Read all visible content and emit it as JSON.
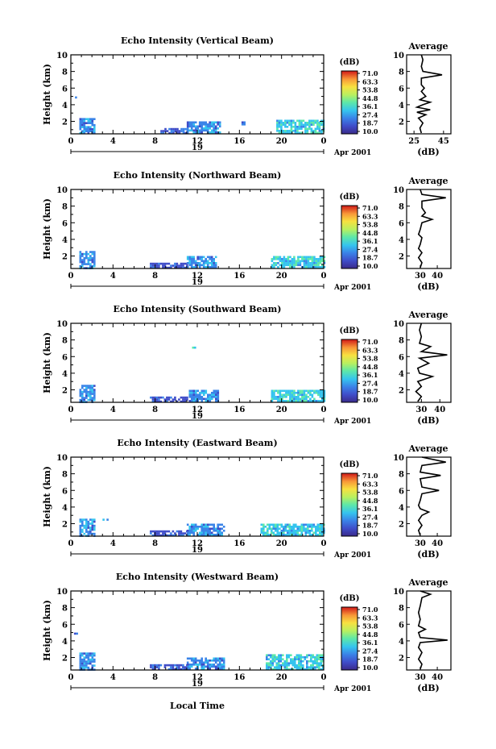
{
  "chart_data": {
    "type": "heatmap",
    "xlabel": "Local Time",
    "day_label": "19",
    "date_label": "Apr 2001",
    "ylabel": "Height (km)",
    "colorbar": {
      "unit": "(dB)",
      "ticks": [
        "71.0",
        "63.3",
        "53.8",
        "44.8",
        "36.1",
        "27.4",
        "18.7",
        "10.0"
      ],
      "colors": [
        "#3a2a8a",
        "#3f4cc8",
        "#3a84e8",
        "#35c4ee",
        "#5ee8a8",
        "#b8f060",
        "#f8e040",
        "#f89838",
        "#e84020",
        "#d01818"
      ]
    },
    "x_ticks": [
      "0",
      "4",
      "8",
      "12",
      "16",
      "20",
      "0"
    ],
    "y_ticks": [
      "10",
      "8",
      "6",
      "4",
      "2"
    ],
    "xlim": [
      0,
      24
    ],
    "ylim": [
      0.5,
      10
    ],
    "avg_title": "Average",
    "avg_xlabel": "(dB)",
    "panels": [
      {
        "title": "Echo Intensity (Vertical Beam)",
        "avg_ticks": [
          "25",
          "45"
        ],
        "avg_xlim": [
          20,
          50
        ],
        "avg_profile": [
          {
            "h": 0.6,
            "v": 30
          },
          {
            "h": 1.2,
            "v": 29
          },
          {
            "h": 1.8,
            "v": 31
          },
          {
            "h": 2.4,
            "v": 28
          },
          {
            "h": 2.8,
            "v": 33
          },
          {
            "h": 3.1,
            "v": 27
          },
          {
            "h": 3.4,
            "v": 36
          },
          {
            "h": 3.7,
            "v": 27
          },
          {
            "h": 4.0,
            "v": 31
          },
          {
            "h": 4.3,
            "v": 36
          },
          {
            "h": 4.6,
            "v": 29
          },
          {
            "h": 5.0,
            "v": 33
          },
          {
            "h": 5.6,
            "v": 30
          },
          {
            "h": 6.0,
            "v": 32
          },
          {
            "h": 6.4,
            "v": 30
          },
          {
            "h": 7.2,
            "v": 30
          },
          {
            "h": 7.6,
            "v": 44
          },
          {
            "h": 8.0,
            "v": 31
          },
          {
            "h": 8.6,
            "v": 30
          },
          {
            "h": 9.4,
            "v": 31
          },
          {
            "h": 10.0,
            "v": 30
          }
        ],
        "blobs": [
          {
            "t0": 0.8,
            "t1": 2.2,
            "h0": 0.6,
            "h1": 2.4,
            "level": 2
          },
          {
            "t0": 0.2,
            "t1": 0.5,
            "h0": 4.8,
            "h1": 5.0,
            "level": 2
          },
          {
            "t0": 8.5,
            "t1": 11.0,
            "h0": 0.6,
            "h1": 1.2,
            "level": 1
          },
          {
            "t0": 11.0,
            "t1": 14.2,
            "h0": 0.6,
            "h1": 2.0,
            "level": 2
          },
          {
            "t0": 16.2,
            "t1": 16.5,
            "h0": 1.6,
            "h1": 2.0,
            "level": 2
          },
          {
            "t0": 19.5,
            "t1": 24.0,
            "h0": 0.6,
            "h1": 2.2,
            "level": 3
          }
        ]
      },
      {
        "title": "Echo Intensity (Northward Beam)",
        "avg_ticks": [
          "30",
          "40"
        ],
        "avg_xlim": [
          22,
          48
        ],
        "avg_profile": [
          {
            "h": 0.6,
            "v": 30
          },
          {
            "h": 1.2,
            "v": 31
          },
          {
            "h": 1.8,
            "v": 29
          },
          {
            "h": 2.4,
            "v": 31
          },
          {
            "h": 2.9,
            "v": 29
          },
          {
            "h": 3.4,
            "v": 30
          },
          {
            "h": 4.2,
            "v": 31
          },
          {
            "h": 4.6,
            "v": 29
          },
          {
            "h": 5.2,
            "v": 30
          },
          {
            "h": 6.0,
            "v": 31
          },
          {
            "h": 6.4,
            "v": 37
          },
          {
            "h": 6.8,
            "v": 31
          },
          {
            "h": 7.2,
            "v": 33
          },
          {
            "h": 7.8,
            "v": 31
          },
          {
            "h": 8.6,
            "v": 31
          },
          {
            "h": 9.0,
            "v": 45
          },
          {
            "h": 9.4,
            "v": 31
          },
          {
            "h": 10.0,
            "v": 30
          }
        ],
        "blobs": [
          {
            "t0": 0.8,
            "t1": 2.2,
            "h0": 0.6,
            "h1": 2.6,
            "level": 2
          },
          {
            "t0": 7.5,
            "t1": 11.0,
            "h0": 0.6,
            "h1": 1.2,
            "level": 1
          },
          {
            "t0": 11.0,
            "t1": 13.8,
            "h0": 0.6,
            "h1": 2.0,
            "level": 2
          },
          {
            "t0": 19.0,
            "t1": 24.0,
            "h0": 0.6,
            "h1": 2.0,
            "level": 3
          }
        ]
      },
      {
        "title": "Echo Intensity (Southward Beam)",
        "avg_ticks": [
          "30",
          "40"
        ],
        "avg_xlim": [
          22,
          46
        ],
        "avg_profile": [
          {
            "h": 0.6,
            "v": 28
          },
          {
            "h": 1.2,
            "v": 30
          },
          {
            "h": 1.8,
            "v": 27
          },
          {
            "h": 2.4,
            "v": 30
          },
          {
            "h": 3.0,
            "v": 28
          },
          {
            "h": 3.6,
            "v": 36
          },
          {
            "h": 4.0,
            "v": 29
          },
          {
            "h": 4.6,
            "v": 28
          },
          {
            "h": 5.2,
            "v": 34
          },
          {
            "h": 5.8,
            "v": 29
          },
          {
            "h": 6.2,
            "v": 44
          },
          {
            "h": 6.6,
            "v": 30
          },
          {
            "h": 7.2,
            "v": 35
          },
          {
            "h": 7.6,
            "v": 29
          },
          {
            "h": 8.4,
            "v": 30
          },
          {
            "h": 9.2,
            "v": 29
          },
          {
            "h": 10.0,
            "v": 30
          }
        ],
        "blobs": [
          {
            "t0": 0.8,
            "t1": 2.2,
            "h0": 0.6,
            "h1": 2.6,
            "level": 2
          },
          {
            "t0": 7.5,
            "t1": 11.0,
            "h0": 0.6,
            "h1": 1.2,
            "level": 1
          },
          {
            "t0": 11.2,
            "t1": 14.0,
            "h0": 0.6,
            "h1": 2.0,
            "level": 2
          },
          {
            "t0": 11.5,
            "t1": 11.7,
            "h0": 7.0,
            "h1": 7.2,
            "level": 4
          },
          {
            "t0": 19.0,
            "t1": 24.0,
            "h0": 0.6,
            "h1": 2.0,
            "level": 3
          }
        ]
      },
      {
        "title": "Echo Intensity (Eastward Beam)",
        "avg_ticks": [
          "30",
          "40"
        ],
        "avg_xlim": [
          22,
          48
        ],
        "avg_profile": [
          {
            "h": 0.6,
            "v": 30
          },
          {
            "h": 1.2,
            "v": 29
          },
          {
            "h": 1.8,
            "v": 31
          },
          {
            "h": 2.4,
            "v": 29
          },
          {
            "h": 3.0,
            "v": 31
          },
          {
            "h": 3.4,
            "v": 35
          },
          {
            "h": 3.8,
            "v": 30
          },
          {
            "h": 4.2,
            "v": 29
          },
          {
            "h": 4.8,
            "v": 30
          },
          {
            "h": 5.6,
            "v": 31
          },
          {
            "h": 6.0,
            "v": 41
          },
          {
            "h": 6.4,
            "v": 31
          },
          {
            "h": 7.4,
            "v": 30
          },
          {
            "h": 7.8,
            "v": 42
          },
          {
            "h": 8.2,
            "v": 30
          },
          {
            "h": 9.0,
            "v": 31
          },
          {
            "h": 9.4,
            "v": 45
          },
          {
            "h": 10.0,
            "v": 31
          }
        ],
        "blobs": [
          {
            "t0": 0.8,
            "t1": 2.2,
            "h0": 0.6,
            "h1": 2.6,
            "level": 2
          },
          {
            "t0": 3.0,
            "t1": 3.5,
            "h0": 2.4,
            "h1": 2.6,
            "level": 2
          },
          {
            "t0": 7.5,
            "t1": 11.0,
            "h0": 0.6,
            "h1": 1.2,
            "level": 1
          },
          {
            "t0": 11.0,
            "t1": 14.5,
            "h0": 0.6,
            "h1": 2.0,
            "level": 2
          },
          {
            "t0": 18.0,
            "t1": 24.0,
            "h0": 0.6,
            "h1": 2.0,
            "level": 3
          }
        ]
      },
      {
        "title": "Echo Intensity (Westward Beam)",
        "avg_ticks": [
          "30",
          "40"
        ],
        "avg_xlim": [
          22,
          48
        ],
        "avg_profile": [
          {
            "h": 0.6,
            "v": 30
          },
          {
            "h": 1.2,
            "v": 31
          },
          {
            "h": 1.8,
            "v": 29
          },
          {
            "h": 2.6,
            "v": 31
          },
          {
            "h": 3.2,
            "v": 29
          },
          {
            "h": 3.8,
            "v": 30
          },
          {
            "h": 4.1,
            "v": 46
          },
          {
            "h": 4.4,
            "v": 30
          },
          {
            "h": 5.0,
            "v": 29
          },
          {
            "h": 5.4,
            "v": 33
          },
          {
            "h": 5.8,
            "v": 29
          },
          {
            "h": 6.6,
            "v": 30
          },
          {
            "h": 7.4,
            "v": 29
          },
          {
            "h": 8.2,
            "v": 30
          },
          {
            "h": 9.2,
            "v": 31
          },
          {
            "h": 9.6,
            "v": 36
          },
          {
            "h": 10.0,
            "v": 30
          }
        ],
        "blobs": [
          {
            "t0": 0.8,
            "t1": 2.2,
            "h0": 0.6,
            "h1": 2.6,
            "level": 2
          },
          {
            "t0": 0.3,
            "t1": 0.5,
            "h0": 4.8,
            "h1": 5.0,
            "level": 2
          },
          {
            "t0": 7.5,
            "t1": 11.0,
            "h0": 0.6,
            "h1": 1.2,
            "level": 1
          },
          {
            "t0": 11.0,
            "t1": 14.5,
            "h0": 0.6,
            "h1": 2.0,
            "level": 2
          },
          {
            "t0": 18.5,
            "t1": 24.0,
            "h0": 0.6,
            "h1": 2.4,
            "level": 3
          }
        ]
      }
    ]
  }
}
